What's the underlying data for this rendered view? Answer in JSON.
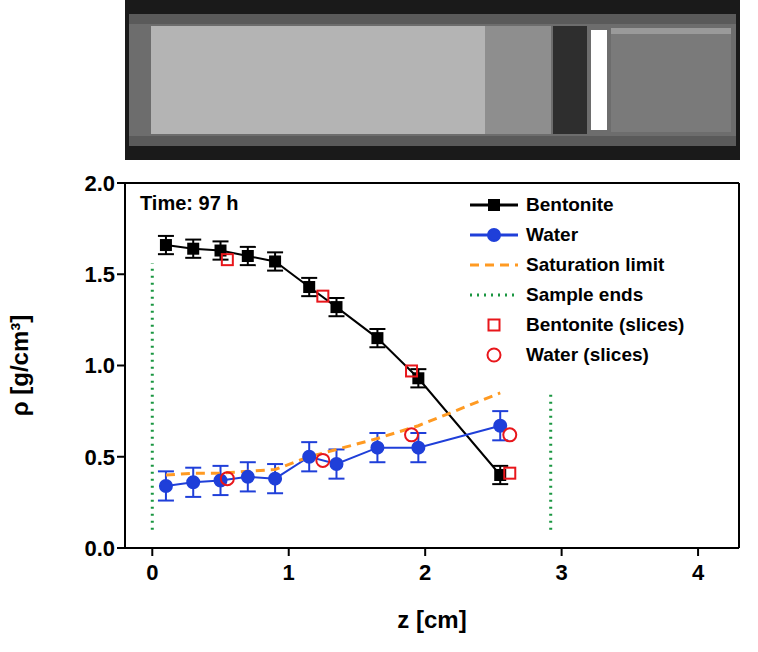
{
  "chart_data": {
    "type": "line",
    "annotation": "Time: 97 h",
    "x_label": "z [cm]",
    "y_label": "ρ [g/cm³]",
    "xlim": [
      -0.2,
      4.3
    ],
    "xticks": [
      0,
      1,
      2,
      3,
      4
    ],
    "ylim": [
      0,
      2
    ],
    "yticks": [
      {
        "value": 0,
        "label": "0.0"
      },
      {
        "value": 0.5,
        "label": "0.5"
      },
      {
        "value": 1,
        "label": "1.0"
      },
      {
        "value": 1.5,
        "label": "1.5"
      },
      {
        "value": 2,
        "label": "2.0"
      }
    ],
    "legend": "upper right",
    "series": [
      {
        "name": "Bentonite",
        "type": "line",
        "color": "#000000",
        "marker": "square",
        "line_style": "solid",
        "x": [
          0.1,
          0.3,
          0.5,
          0.7,
          0.9,
          1.15,
          1.35,
          1.65,
          1.95,
          2.55
        ],
        "values": [
          1.66,
          1.64,
          1.63,
          1.6,
          1.57,
          1.43,
          1.32,
          1.15,
          0.93,
          0.4
        ],
        "errors": [
          0.05,
          0.05,
          0.05,
          0.05,
          0.05,
          0.05,
          0.05,
          0.05,
          0.05,
          0.05
        ]
      },
      {
        "name": "Water",
        "type": "line",
        "color": "#1f3fd9",
        "marker": "circle",
        "line_style": "solid",
        "x": [
          0.1,
          0.3,
          0.5,
          0.7,
          0.9,
          1.15,
          1.35,
          1.65,
          1.95,
          2.55
        ],
        "values": [
          0.34,
          0.36,
          0.37,
          0.39,
          0.38,
          0.5,
          0.46,
          0.55,
          0.55,
          0.67
        ],
        "errors": [
          0.08,
          0.08,
          0.08,
          0.08,
          0.08,
          0.08,
          0.08,
          0.08,
          0.08,
          0.08
        ]
      },
      {
        "name": "Saturation limit",
        "type": "line",
        "color": "#ff9a22",
        "marker": "none",
        "line_style": "dashed",
        "x": [
          0.1,
          0.3,
          0.5,
          0.7,
          0.9,
          1.15,
          1.35,
          1.65,
          1.95,
          2.55
        ],
        "values": [
          0.4,
          0.41,
          0.41,
          0.42,
          0.43,
          0.5,
          0.54,
          0.6,
          0.67,
          0.85
        ]
      },
      {
        "name": "Sample ends",
        "type": "segments",
        "color": "#1a9641",
        "marker": "none",
        "line_style": "dotted",
        "segments": [
          {
            "x": 0,
            "y": [
              0.1,
              1.56
            ]
          },
          {
            "x": 2.92,
            "y": [
              0.1,
              0.85
            ]
          }
        ]
      },
      {
        "name": "Bentonite (slices)",
        "type": "scatter",
        "color": "#e8161b",
        "marker": "square",
        "x": [
          0.55,
          1.25,
          1.9,
          2.62
        ],
        "values": [
          1.58,
          1.38,
          0.97,
          0.41
        ]
      },
      {
        "name": "Water (slices)",
        "type": "scatter",
        "color": "#e8161b",
        "marker": "circle",
        "x": [
          0.55,
          1.25,
          1.9,
          2.62
        ],
        "values": [
          0.38,
          0.48,
          0.62,
          0.62
        ]
      }
    ]
  }
}
